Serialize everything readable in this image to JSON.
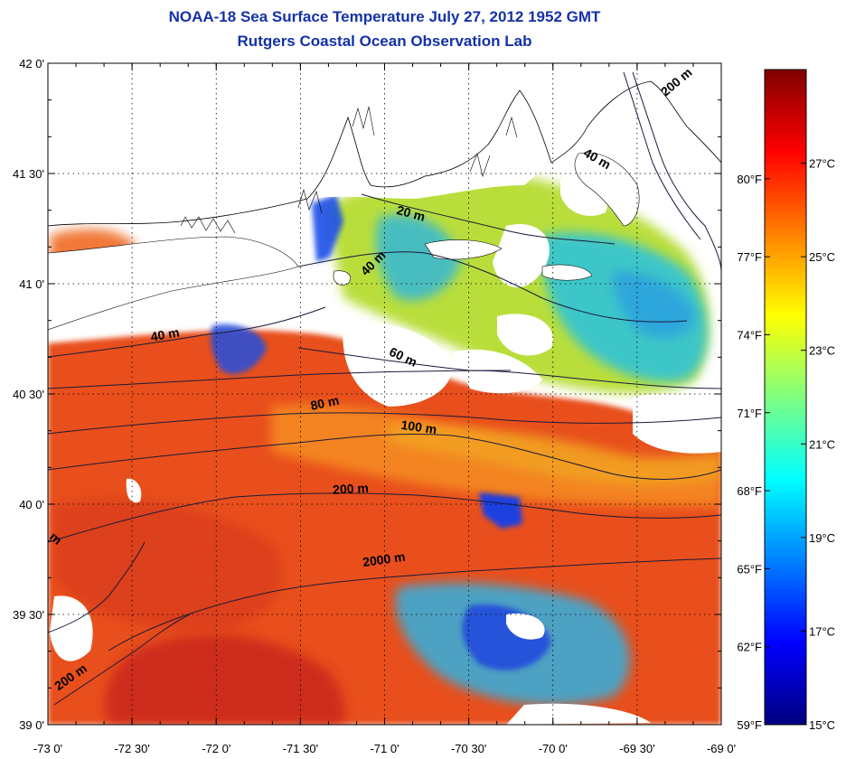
{
  "header": {
    "title_line1": "NOAA-18 Sea Surface Temperature July 27, 2012 1952 GMT",
    "title_line2": "Rutgers Coastal Ocean Observation Lab",
    "title_color": "#1432a8"
  },
  "map": {
    "lon_range": [
      -73.0,
      -69.0
    ],
    "lat_range": [
      39.0,
      42.0
    ],
    "lon_ticks": [
      {
        "value": -73.0,
        "label": "-73 0'"
      },
      {
        "value": -72.5,
        "label": "-72 30'"
      },
      {
        "value": -72.0,
        "label": "-72 0'"
      },
      {
        "value": -71.5,
        "label": "-71 30'"
      },
      {
        "value": -71.0,
        "label": "-71 0'"
      },
      {
        "value": -70.5,
        "label": "-70 30'"
      },
      {
        "value": -70.0,
        "label": "-70 0'"
      },
      {
        "value": -69.5,
        "label": "-69 30'"
      },
      {
        "value": -69.0,
        "label": "-69 0'"
      }
    ],
    "lat_ticks": [
      {
        "value": 39.0,
        "label": "39 0'"
      },
      {
        "value": 39.5,
        "label": "39 30'"
      },
      {
        "value": 40.0,
        "label": "40 0'"
      },
      {
        "value": 40.5,
        "label": "40 30'"
      },
      {
        "value": 41.0,
        "label": "41 0'"
      },
      {
        "value": 41.5,
        "label": "41 30'"
      },
      {
        "value": 42.0,
        "label": "42 0'"
      }
    ],
    "gridlines": "dotted",
    "bathymetry_labels": [
      {
        "text": "200 m",
        "lon": -69.25,
        "lat": 41.9,
        "angle": -40
      },
      {
        "text": "40 m",
        "lon": -69.75,
        "lat": 41.55,
        "angle": 30
      },
      {
        "text": "20 m",
        "lon": -70.85,
        "lat": 41.3,
        "angle": 15
      },
      {
        "text": "40 m",
        "lon": -71.05,
        "lat": 41.08,
        "angle": -45
      },
      {
        "text": "40 m",
        "lon": -72.3,
        "lat": 40.75,
        "angle": -10
      },
      {
        "text": "60 m",
        "lon": -70.9,
        "lat": 40.65,
        "angle": 25
      },
      {
        "text": "80 m",
        "lon": -71.35,
        "lat": 40.44,
        "angle": -12
      },
      {
        "text": "100 m",
        "lon": -70.8,
        "lat": 40.33,
        "angle": 8
      },
      {
        "text": "200 m",
        "lon": -71.2,
        "lat": 40.05,
        "angle": -3
      },
      {
        "text": "2000 m",
        "lon": -71.0,
        "lat": 39.73,
        "angle": -8
      },
      {
        "text": "200 m",
        "lon": -72.85,
        "lat": 39.2,
        "angle": -35
      },
      {
        "text": "m",
        "lon": -72.97,
        "lat": 39.83,
        "angle": 40
      }
    ],
    "sst_layer": {
      "warm_color": "#e8451c",
      "hot_color": "#c81e12",
      "cool_color": "#2ab8e0",
      "cold_color": "#1840e0",
      "cloud_color": "#ffffff",
      "land_color": "#ffffff"
    }
  },
  "colorbar": {
    "range_c": [
      15,
      29
    ],
    "celsius_ticks": [
      {
        "value": 15,
        "label": "15°C"
      },
      {
        "value": 17,
        "label": "17°C"
      },
      {
        "value": 19,
        "label": "19°C"
      },
      {
        "value": 21,
        "label": "21°C"
      },
      {
        "value": 23,
        "label": "23°C"
      },
      {
        "value": 25,
        "label": "25°C"
      },
      {
        "value": 27,
        "label": "27°C"
      }
    ],
    "fahrenheit_ticks": [
      {
        "value": 59,
        "label": "59°F"
      },
      {
        "value": 62,
        "label": "62°F"
      },
      {
        "value": 65,
        "label": "65°F"
      },
      {
        "value": 68,
        "label": "68°F"
      },
      {
        "value": 71,
        "label": "71°F"
      },
      {
        "value": 74,
        "label": "74°F"
      },
      {
        "value": 77,
        "label": "77°F"
      },
      {
        "value": 80,
        "label": "80°F"
      }
    ],
    "colormap": [
      "#00007f",
      "#0000ff",
      "#0080ff",
      "#00ffff",
      "#80ff80",
      "#ffff00",
      "#ff8000",
      "#ff0000",
      "#7f0000"
    ]
  }
}
